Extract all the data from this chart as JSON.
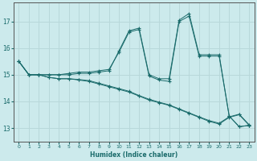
{
  "xlabel": "Humidex (Indice chaleur)",
  "ylabel": "",
  "xlim": [
    -0.5,
    23.5
  ],
  "ylim": [
    12.5,
    17.7
  ],
  "yticks": [
    13,
    14,
    15,
    16,
    17
  ],
  "xticks": [
    0,
    1,
    2,
    3,
    4,
    5,
    6,
    7,
    8,
    9,
    10,
    11,
    12,
    13,
    14,
    15,
    16,
    17,
    18,
    19,
    20,
    21,
    22,
    23
  ],
  "background_color": "#cceaec",
  "line_color": "#1a6b6b",
  "grid_color": "#b8d8da",
  "series": [
    {
      "x": [
        0,
        1,
        2,
        3,
        4,
        5,
        6,
        7,
        8,
        9,
        10,
        11,
        12,
        13,
        14,
        15,
        16,
        17,
        18,
        19,
        20,
        21,
        22,
        23
      ],
      "y": [
        15.5,
        15.0,
        15.0,
        15.0,
        15.0,
        15.0,
        15.05,
        15.05,
        15.1,
        15.15,
        15.9,
        16.65,
        16.75,
        15.0,
        14.85,
        14.85,
        17.05,
        17.3,
        15.75,
        15.75,
        15.75,
        13.45,
        13.05,
        13.1
      ]
    },
    {
      "x": [
        0,
        1,
        2,
        3,
        4,
        5,
        6,
        7,
        8,
        9,
        10,
        11,
        12,
        13,
        14,
        15,
        16,
        17,
        18,
        19,
        20,
        21,
        22,
        23
      ],
      "y": [
        15.5,
        15.0,
        15.0,
        15.0,
        15.0,
        15.05,
        15.1,
        15.1,
        15.15,
        15.2,
        15.85,
        16.6,
        16.7,
        14.95,
        14.8,
        14.75,
        17.0,
        17.2,
        15.7,
        15.7,
        15.7,
        13.45,
        13.05,
        13.1
      ]
    },
    {
      "x": [
        0,
        1,
        2,
        3,
        4,
        5,
        6,
        7,
        8,
        9,
        10,
        11,
        12,
        13,
        14,
        15,
        16,
        17,
        18,
        19,
        20,
        21,
        22,
        23
      ],
      "y": [
        15.5,
        15.0,
        15.0,
        14.9,
        14.85,
        14.85,
        14.8,
        14.75,
        14.65,
        14.55,
        14.45,
        14.35,
        14.2,
        14.05,
        13.95,
        13.85,
        13.7,
        13.55,
        13.4,
        13.25,
        13.15,
        13.4,
        13.5,
        13.1
      ]
    },
    {
      "x": [
        0,
        1,
        2,
        3,
        4,
        5,
        6,
        7,
        8,
        9,
        10,
        11,
        12,
        13,
        14,
        15,
        16,
        17,
        18,
        19,
        20,
        21,
        22,
        23
      ],
      "y": [
        15.5,
        15.0,
        15.0,
        14.9,
        14.85,
        14.85,
        14.82,
        14.78,
        14.68,
        14.58,
        14.48,
        14.38,
        14.22,
        14.08,
        13.97,
        13.87,
        13.72,
        13.57,
        13.42,
        13.28,
        13.18,
        13.42,
        13.52,
        13.12
      ]
    }
  ]
}
